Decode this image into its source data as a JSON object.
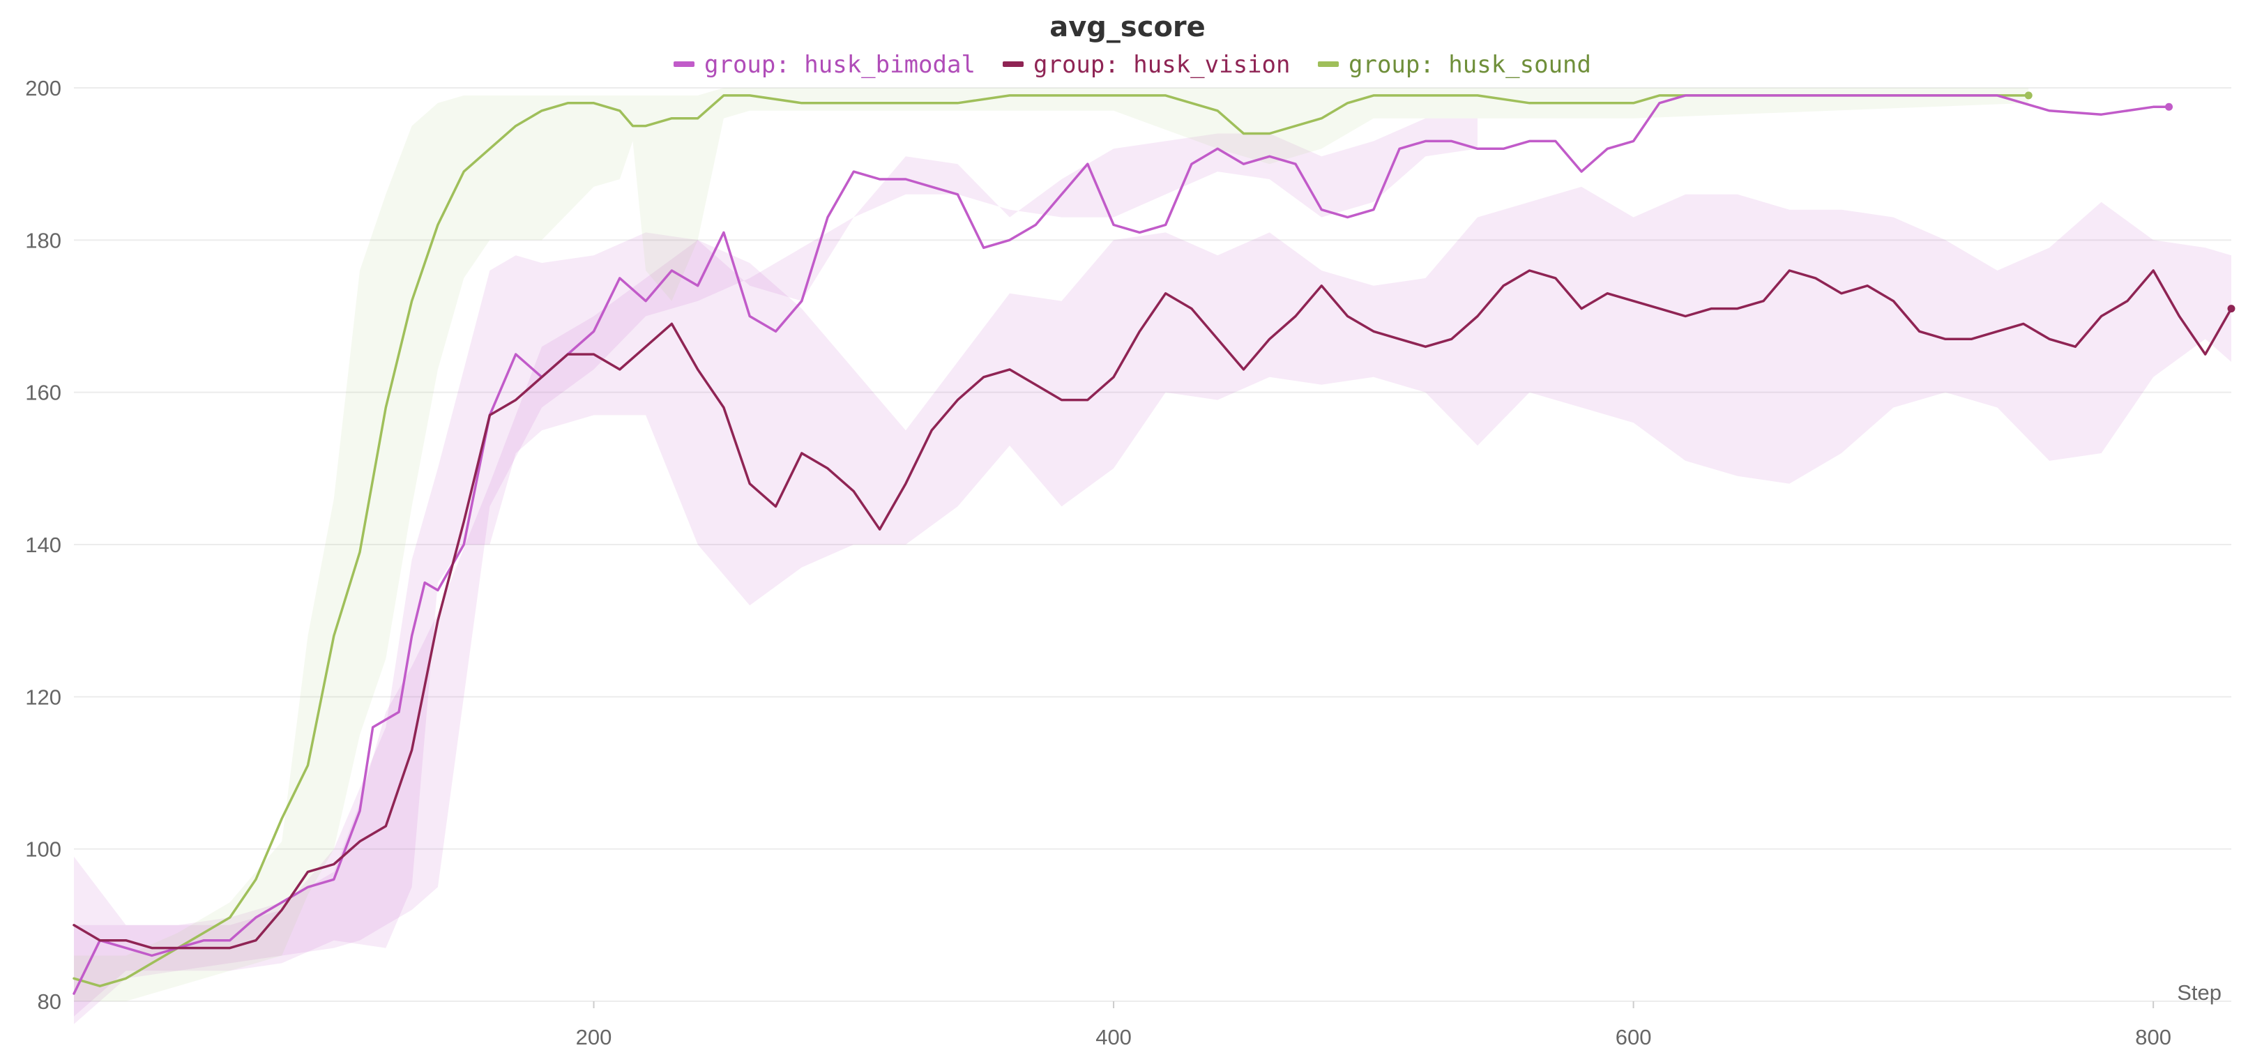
{
  "chart_data": {
    "type": "line",
    "title": "avg_score",
    "xlabel": "Step",
    "ylabel": "",
    "xlim": [
      0,
      830
    ],
    "ylim": [
      80,
      200
    ],
    "x_ticks": [
      200,
      400,
      600,
      800
    ],
    "y_ticks": [
      80,
      100,
      120,
      140,
      160,
      180,
      200
    ],
    "grid": true,
    "legend_position": "top-center",
    "series": [
      {
        "name": "group: husk_bimodal",
        "color": "#c15bc9",
        "band_color": "#c15bc9",
        "end_marker": true,
        "x": [
          0,
          10,
          20,
          30,
          40,
          50,
          60,
          70,
          80,
          90,
          100,
          110,
          115,
          120,
          125,
          130,
          135,
          140,
          150,
          160,
          170,
          180,
          190,
          200,
          210,
          220,
          230,
          240,
          250,
          260,
          270,
          280,
          290,
          300,
          310,
          320,
          330,
          340,
          350,
          360,
          370,
          380,
          390,
          400,
          410,
          420,
          430,
          440,
          450,
          460,
          470,
          480,
          490,
          500,
          510,
          520,
          530,
          540,
          550,
          560,
          570,
          580,
          590,
          600,
          610,
          620,
          640,
          660,
          680,
          700,
          720,
          740,
          760,
          780,
          800,
          806
        ],
        "y": [
          81,
          88,
          87,
          86,
          87,
          88,
          88,
          91,
          93,
          95,
          96,
          105,
          116,
          117,
          118,
          128,
          135,
          134,
          140,
          157,
          165,
          162,
          165,
          168,
          175,
          172,
          176,
          174,
          181,
          170,
          168,
          172,
          183,
          189,
          188,
          188,
          187,
          186,
          179,
          180,
          182,
          186,
          190,
          182,
          181,
          182,
          190,
          192,
          190,
          191,
          190,
          184,
          183,
          184,
          192,
          193,
          193,
          192,
          192,
          193,
          193,
          189,
          192,
          193,
          198,
          199,
          199,
          199,
          199,
          199,
          199,
          199,
          197,
          196.5,
          197.5,
          197.5
        ],
        "band_x": [
          0,
          20,
          40,
          60,
          80,
          100,
          110,
          120,
          130,
          140,
          160,
          180,
          200,
          220,
          240,
          260,
          280,
          300,
          320,
          340,
          360,
          380,
          400,
          420,
          440,
          460,
          480,
          500,
          520,
          540
        ],
        "band_low": [
          77,
          83,
          84,
          85,
          86,
          87,
          88,
          90,
          92,
          95,
          145,
          158,
          163,
          170,
          172,
          175,
          179,
          183,
          186,
          186,
          184,
          183,
          183,
          186,
          189,
          188,
          183,
          185,
          191,
          192
        ],
        "band_high": [
          90,
          90,
          90,
          91,
          93,
          97,
          106,
          118,
          124,
          131,
          148,
          166,
          170,
          175,
          180,
          174,
          172,
          183,
          191,
          190,
          183,
          188,
          192,
          193,
          194,
          194,
          191,
          193,
          196,
          196
        ]
      },
      {
        "name": "group: husk_vision",
        "color": "#8f2454",
        "band_color": "#c15bc9",
        "end_marker": true,
        "x": [
          0,
          10,
          20,
          30,
          40,
          50,
          60,
          70,
          80,
          90,
          100,
          110,
          120,
          130,
          140,
          150,
          160,
          170,
          180,
          190,
          200,
          210,
          220,
          230,
          240,
          250,
          260,
          270,
          280,
          290,
          300,
          310,
          320,
          330,
          340,
          350,
          360,
          370,
          380,
          390,
          400,
          410,
          420,
          430,
          440,
          450,
          460,
          470,
          480,
          490,
          500,
          510,
          520,
          530,
          540,
          550,
          560,
          570,
          580,
          590,
          600,
          610,
          620,
          630,
          640,
          650,
          660,
          670,
          680,
          690,
          700,
          710,
          720,
          730,
          740,
          750,
          760,
          770,
          780,
          790,
          800,
          810,
          820,
          830
        ],
        "y": [
          90,
          88,
          88,
          87,
          87,
          87,
          87,
          88,
          92,
          97,
          98,
          101,
          103,
          113,
          130,
          143,
          157,
          159,
          162,
          165,
          165,
          163,
          166,
          169,
          163,
          158,
          148,
          145,
          152,
          150,
          147,
          142,
          148,
          155,
          159,
          162,
          163,
          161,
          159,
          159,
          162,
          168,
          173,
          171,
          167,
          163,
          167,
          170,
          174,
          170,
          168,
          167,
          166,
          167,
          170,
          174,
          176,
          175,
          171,
          173,
          172,
          171,
          170,
          171,
          171,
          172,
          176,
          175,
          173,
          174,
          172,
          168,
          167,
          167,
          168,
          169,
          167,
          166,
          170,
          172,
          176,
          170,
          165,
          171
        ],
        "band_x": [
          0,
          20,
          40,
          60,
          80,
          100,
          120,
          130,
          140,
          150,
          160,
          170,
          180,
          200,
          220,
          240,
          260,
          280,
          300,
          320,
          340,
          360,
          380,
          400,
          420,
          440,
          460,
          480,
          500,
          520,
          540,
          560,
          580,
          600,
          620,
          640,
          660,
          680,
          700,
          720,
          740,
          760,
          780,
          800,
          820,
          830
        ],
        "band_low": [
          78,
          84,
          84,
          84,
          85,
          88,
          87,
          95,
          135,
          140,
          140,
          152,
          155,
          157,
          157,
          140,
          132,
          137,
          140,
          140,
          145,
          153,
          145,
          150,
          160,
          159,
          162,
          161,
          162,
          160,
          153,
          160,
          158,
          156,
          151,
          149,
          148,
          152,
          158,
          160,
          158,
          151,
          152,
          162,
          167,
          164
        ],
        "band_high": [
          99,
          90,
          90,
          90,
          92,
          100,
          116,
          138,
          150,
          163,
          176,
          178,
          177,
          178,
          181,
          180,
          177,
          171,
          163,
          155,
          164,
          173,
          172,
          180,
          181,
          178,
          181,
          176,
          174,
          175,
          183,
          185,
          187,
          183,
          186,
          186,
          184,
          184,
          183,
          180,
          176,
          179,
          185,
          180,
          179,
          178
        ]
      },
      {
        "name": "group: husk_sound",
        "color": "#9fbf5a",
        "band_color": "#b9d394",
        "end_marker": true,
        "x": [
          0,
          10,
          20,
          30,
          40,
          50,
          60,
          70,
          80,
          90,
          100,
          110,
          120,
          130,
          140,
          150,
          160,
          170,
          180,
          190,
          200,
          210,
          215,
          220,
          230,
          240,
          250,
          260,
          280,
          300,
          320,
          340,
          360,
          380,
          400,
          420,
          440,
          450,
          460,
          480,
          490,
          500,
          520,
          540,
          560,
          580,
          600,
          610,
          620,
          640,
          660,
          680,
          700,
          720,
          740,
          752
        ],
        "y": [
          83,
          82,
          83,
          85,
          87,
          89,
          91,
          96,
          104,
          111,
          128,
          139,
          158,
          172,
          182,
          189,
          192,
          195,
          197,
          198,
          198,
          197,
          195,
          195,
          196,
          196,
          199,
          199,
          198,
          198,
          198,
          198,
          199,
          199,
          199,
          199,
          197,
          194,
          194,
          196,
          198,
          199,
          199,
          199,
          198,
          198,
          198,
          199,
          199,
          199,
          199,
          199,
          199,
          199,
          199,
          199
        ],
        "band_x": [
          0,
          20,
          40,
          60,
          80,
          90,
          100,
          110,
          120,
          130,
          140,
          150,
          160,
          180,
          200,
          210,
          215,
          220,
          230,
          240,
          250,
          260,
          300,
          400,
          440,
          460,
          480,
          500,
          600,
          752
        ],
        "band_low": [
          80,
          80,
          82,
          84,
          86,
          94,
          100,
          115,
          125,
          145,
          163,
          175,
          180,
          180,
          187,
          188,
          193,
          176,
          172,
          180,
          196,
          197,
          197,
          197,
          192,
          190,
          192,
          196,
          196,
          198
        ],
        "band_high": [
          86,
          86,
          89,
          93,
          101,
          128,
          146,
          176,
          186,
          195,
          198,
          199,
          199,
          199,
          199,
          199,
          199,
          199,
          199,
          199,
          200,
          200,
          200,
          200,
          200,
          200,
          200,
          200,
          200,
          200
        ]
      }
    ]
  }
}
